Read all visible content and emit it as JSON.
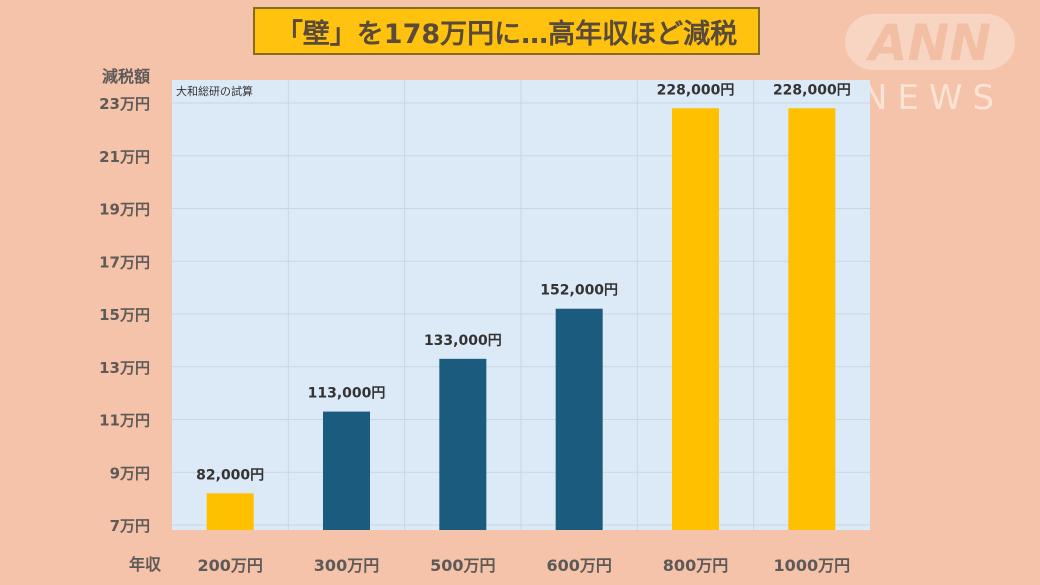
{
  "title": "「壁」を178万円に…高年収ほど減税",
  "logo": {
    "line1": "ANN",
    "line2": "NEWS"
  },
  "chart_data": {
    "type": "bar",
    "title": "「壁」を178万円に…高年収ほど減税",
    "source_note": "大和総研の試算",
    "ylabel": "減税額",
    "xlabel": "年収",
    "categories": [
      "200万円",
      "300万円",
      "500万円",
      "600万円",
      "800万円",
      "1000万円"
    ],
    "values": [
      82000,
      113000,
      133000,
      152000,
      228000,
      228000
    ],
    "data_labels": [
      "82,000円",
      "113,000円",
      "133,000円",
      "152,000円",
      "228,000円",
      "228,000円"
    ],
    "bar_colors": [
      "#FFC000",
      "#1B5B7E",
      "#1B5B7E",
      "#1B5B7E",
      "#FFC000",
      "#FFC000"
    ],
    "yticks": [
      70000,
      90000,
      110000,
      130000,
      150000,
      170000,
      190000,
      210000,
      230000
    ],
    "ytick_labels": [
      "7万円",
      "9万円",
      "11万円",
      "13万円",
      "15万円",
      "17万円",
      "19万円",
      "21万円",
      "23万円"
    ],
    "ylim": [
      70000,
      230000
    ],
    "grid": true,
    "plot_background": "#DCEAF7"
  }
}
